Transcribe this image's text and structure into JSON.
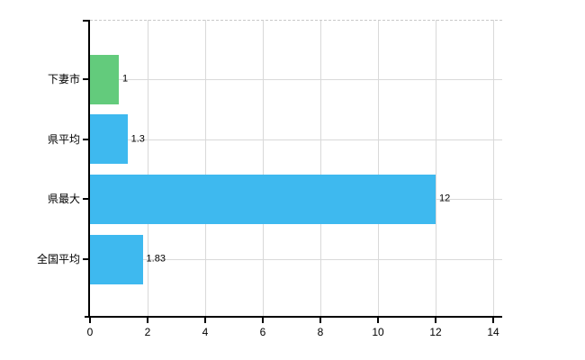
{
  "chart_data": {
    "type": "bar",
    "orientation": "horizontal",
    "title": "",
    "xlabel": "",
    "ylabel": "",
    "categories": [
      "下妻市",
      "県平均",
      "県最大",
      "全国平均"
    ],
    "values": [
      1,
      1.3,
      12,
      1.83
    ],
    "value_labels": [
      "1",
      "1.3",
      "12",
      "1.83"
    ],
    "bar_colors": [
      "#63cb7c",
      "#3eb9ef",
      "#3eb9ef",
      "#3eb9ef"
    ],
    "xlim": [
      0,
      14
    ],
    "x_ticks": [
      0,
      2,
      4,
      6,
      8,
      10,
      12,
      14
    ],
    "grid": "on",
    "gridline_color": "#d9d9d9",
    "axis_color": "#000000",
    "background_color": "#ffffff",
    "legend": "none"
  }
}
